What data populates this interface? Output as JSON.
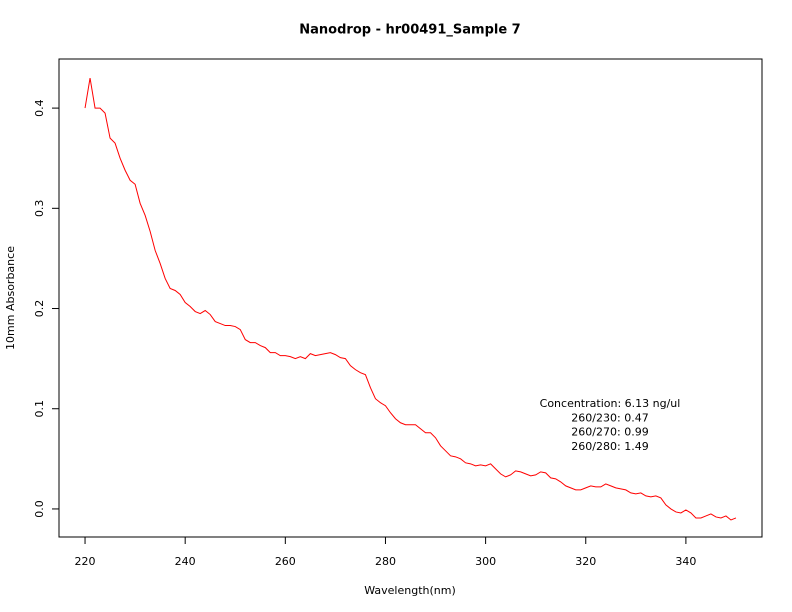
{
  "chart_data": {
    "type": "line",
    "title": "Nanodrop - hr00491_Sample 7",
    "xlabel": "Wavelength(nm)",
    "ylabel": "10mm Absorbance",
    "color": "#ff0000",
    "x": [
      220,
      221,
      222,
      223,
      224,
      225,
      226,
      227,
      228,
      229,
      230,
      231,
      232,
      233,
      234,
      235,
      236,
      237,
      238,
      239,
      240,
      241,
      242,
      243,
      244,
      245,
      246,
      247,
      248,
      249,
      250,
      251,
      252,
      253,
      254,
      255,
      256,
      257,
      258,
      259,
      260,
      261,
      262,
      263,
      264,
      265,
      266,
      267,
      268,
      269,
      270,
      271,
      272,
      273,
      274,
      275,
      276,
      277,
      278,
      279,
      280,
      281,
      282,
      283,
      284,
      285,
      286,
      287,
      288,
      289,
      290,
      291,
      292,
      293,
      294,
      295,
      296,
      297,
      298,
      299,
      300,
      301,
      302,
      303,
      304,
      305,
      306,
      307,
      308,
      309,
      310,
      311,
      312,
      313,
      314,
      315,
      316,
      317,
      318,
      319,
      320,
      321,
      322,
      323,
      324,
      325,
      326,
      327,
      328,
      329,
      330,
      331,
      332,
      333,
      334,
      335,
      336,
      337,
      338,
      339,
      340,
      341,
      342,
      343,
      344,
      345,
      346,
      347,
      348,
      349,
      350
    ],
    "values": [
      0.4,
      0.43,
      0.4,
      0.4,
      0.395,
      0.37,
      0.365,
      0.35,
      0.338,
      0.328,
      0.324,
      0.305,
      0.293,
      0.277,
      0.258,
      0.245,
      0.23,
      0.22,
      0.218,
      0.214,
      0.206,
      0.202,
      0.197,
      0.195,
      0.198,
      0.194,
      0.187,
      0.185,
      0.183,
      0.183,
      0.182,
      0.179,
      0.169,
      0.166,
      0.166,
      0.163,
      0.161,
      0.156,
      0.156,
      0.153,
      0.153,
      0.152,
      0.15,
      0.152,
      0.15,
      0.155,
      0.153,
      0.154,
      0.155,
      0.156,
      0.154,
      0.151,
      0.15,
      0.143,
      0.139,
      0.136,
      0.134,
      0.121,
      0.11,
      0.106,
      0.103,
      0.096,
      0.09,
      0.086,
      0.084,
      0.084,
      0.084,
      0.08,
      0.076,
      0.076,
      0.071,
      0.063,
      0.058,
      0.053,
      0.052,
      0.05,
      0.046,
      0.045,
      0.043,
      0.044,
      0.043,
      0.045,
      0.04,
      0.035,
      0.032,
      0.034,
      0.038,
      0.037,
      0.035,
      0.033,
      0.034,
      0.037,
      0.036,
      0.031,
      0.03,
      0.027,
      0.023,
      0.021,
      0.019,
      0.019,
      0.021,
      0.023,
      0.022,
      0.022,
      0.025,
      0.023,
      0.021,
      0.02,
      0.019,
      0.016,
      0.015,
      0.016,
      0.013,
      0.012,
      0.013,
      0.011,
      0.004,
      0.0,
      -0.003,
      -0.004,
      -0.001,
      -0.004,
      -0.009,
      -0.009,
      -0.007,
      -0.005,
      -0.008,
      -0.009,
      -0.007,
      -0.011,
      -0.009
    ],
    "xlim": [
      214.8,
      355.2
    ],
    "ylim": [
      -0.028,
      0.449
    ],
    "xticks": [
      220,
      240,
      260,
      280,
      300,
      320,
      340
    ],
    "yticks": [
      {
        "value": 0,
        "label": "0.0"
      },
      0.1,
      0.2,
      0.3,
      0.4
    ],
    "annotations": [
      "Concentration: 6.13 ng/ul",
      "260/230: 0.47",
      "260/270: 0.99",
      "260/280: 1.49"
    ]
  }
}
